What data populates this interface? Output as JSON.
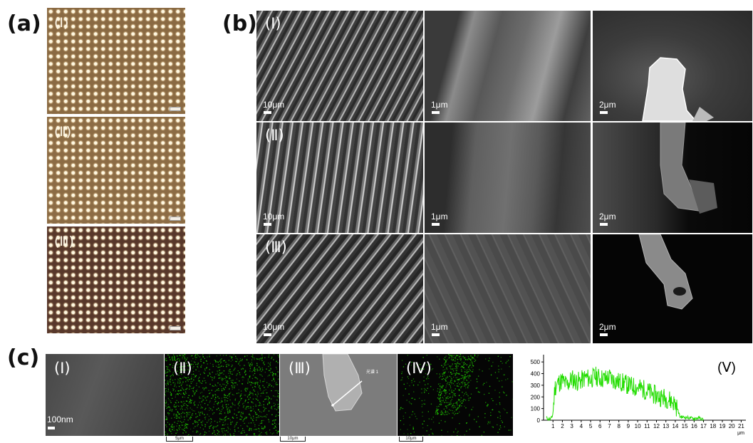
{
  "panel_labels": {
    "a": "(a)",
    "b": "(b)",
    "c": "(c)"
  },
  "panel_a": {
    "rows": [
      {
        "label": "(Ⅰ)"
      },
      {
        "label": "(Ⅱ)"
      },
      {
        "label": "(Ⅲ)"
      }
    ]
  },
  "panel_b": {
    "rows": [
      {
        "label": "(Ⅰ)",
        "scales": [
          "10μm",
          "1μm",
          "2μm"
        ]
      },
      {
        "label": "(Ⅱ)",
        "scales": [
          "10μm",
          "1μm",
          "2μm"
        ]
      },
      {
        "label": "(Ⅲ)",
        "scales": [
          "10μm",
          "1μm",
          "2μm"
        ]
      }
    ]
  },
  "panel_c": {
    "images": [
      {
        "label": "(Ⅰ)",
        "scale": "100nm"
      },
      {
        "label": "(Ⅱ)",
        "scale": "5μm"
      },
      {
        "label": "(Ⅲ)",
        "scale": "10μm",
        "line_label": "光谱 1"
      },
      {
        "label": "(Ⅳ)",
        "scale": "10μm"
      }
    ],
    "plot_label": "(Ⅴ)",
    "element_color": "#22dd00"
  },
  "chart_data": {
    "type": "line",
    "title": "",
    "xlabel": "μm",
    "ylabel": "",
    "xlim": [
      0,
      21.5
    ],
    "ylim": [
      0,
      550
    ],
    "x_ticks": [
      1,
      2,
      3,
      4,
      5,
      6,
      7,
      8,
      9,
      10,
      11,
      12,
      13,
      14,
      15,
      16,
      17,
      18,
      19,
      20,
      21
    ],
    "y_ticks": [
      0,
      100,
      200,
      300,
      400,
      500
    ],
    "grid": false,
    "series": [
      {
        "color": "#22dd00",
        "x": [
          0.3,
          0.6,
          0.9,
          1.0,
          1.2,
          1.5,
          2.0,
          2.5,
          3.0,
          3.5,
          4.0,
          4.5,
          5.0,
          5.5,
          6.0,
          6.5,
          7.0,
          7.5,
          8.0,
          8.5,
          9.0,
          9.5,
          10.0,
          10.5,
          11.0,
          11.5,
          12.0,
          12.5,
          13.0,
          13.5,
          14.0,
          14.3,
          14.5,
          15.0,
          15.5,
          16.0,
          16.5,
          17.0
        ],
        "y": [
          20,
          5,
          25,
          60,
          280,
          320,
          340,
          300,
          360,
          330,
          340,
          370,
          350,
          380,
          360,
          355,
          370,
          340,
          330,
          320,
          300,
          290,
          280,
          270,
          250,
          230,
          210,
          200,
          190,
          170,
          140,
          80,
          30,
          25,
          20,
          15,
          20,
          5
        ]
      }
    ]
  }
}
